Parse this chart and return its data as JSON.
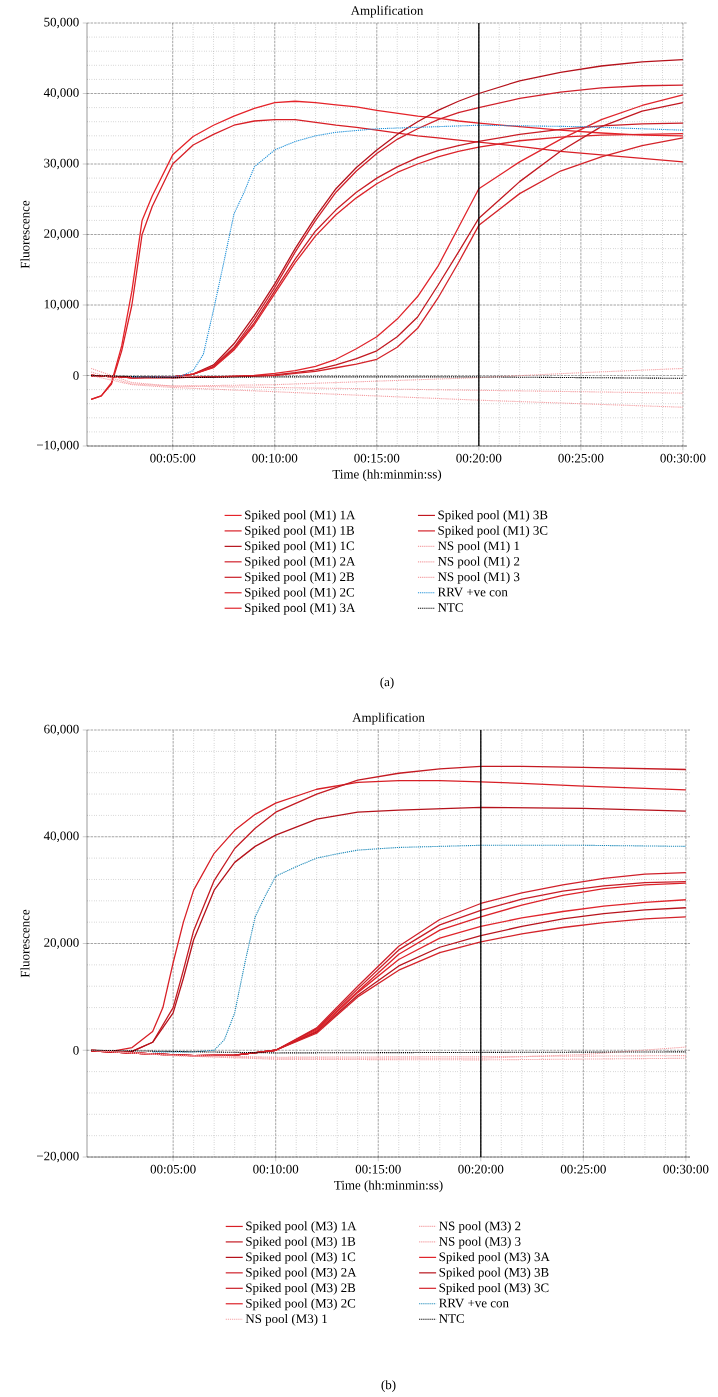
{
  "chart_data": [
    {
      "type": "line",
      "title": "Amplification",
      "xlabel": "Time (hh:minmin:ss)",
      "ylabel": "Fluorescence",
      "annotations": [
        "(a)"
      ],
      "xlim": [
        0.8,
        30.2
      ],
      "ylim": [
        -10000,
        50000
      ],
      "xticks": [
        {
          "value": 5,
          "label": "00:05:00"
        },
        {
          "value": 10,
          "label": "00:10:00"
        },
        {
          "value": 15,
          "label": "00:15:00"
        },
        {
          "value": 20,
          "label": "00:20:00"
        },
        {
          "value": 25,
          "label": "00:25:00"
        },
        {
          "value": 30,
          "label": "00:30:00"
        }
      ],
      "yticks": [
        {
          "value": -10000,
          "label": "−10,000"
        },
        0,
        {
          "value": 10000,
          "label": "10,000"
        },
        {
          "value": 20000,
          "label": "20,000"
        },
        {
          "value": 30000,
          "label": "30,000"
        },
        {
          "value": 40000,
          "label": "40,000"
        },
        {
          "value": 50000,
          "label": "50,000"
        }
      ],
      "grid": true,
      "legend": "bottom",
      "line_style": "solid",
      "ref_lines": [
        {
          "axis": "x",
          "value": 20,
          "color": "#000000"
        }
      ],
      "series": [
        {
          "name": "Spiked pool (M1) 1A",
          "color": "#e52329",
          "x": [
            1,
            1.5,
            2,
            2.5,
            3,
            3.5,
            4,
            5,
            6,
            7,
            8,
            9,
            10,
            11,
            12,
            13,
            14,
            15,
            16,
            17,
            18,
            19,
            20,
            22,
            24,
            26,
            28,
            30
          ],
          "values": [
            -3400,
            -2900,
            -1000,
            4200,
            12000,
            22000,
            25500,
            31300,
            33900,
            35500,
            36800,
            37900,
            38700,
            38900,
            38700,
            38400,
            38100,
            37600,
            37200,
            36800,
            36500,
            36100,
            35800,
            35300,
            34800,
            34400,
            34100,
            34000
          ]
        },
        {
          "name": "Spiked pool (M1) 1B",
          "color": "#d81f26",
          "x": [
            1,
            1.5,
            2,
            2.5,
            3,
            3.5,
            4,
            5,
            6,
            7,
            8,
            9,
            10,
            11,
            12,
            13,
            14,
            15,
            16,
            17,
            18,
            19,
            20,
            22,
            24,
            26,
            28,
            30
          ],
          "values": [
            -3400,
            -2900,
            -1200,
            3500,
            10000,
            20000,
            24000,
            30000,
            32700,
            34200,
            35500,
            36100,
            36300,
            36300,
            35900,
            35500,
            35200,
            34800,
            34400,
            34000,
            33700,
            33400,
            33100,
            32500,
            31800,
            31300,
            30800,
            30300
          ]
        },
        {
          "name": "Spiked pool (M1) 1C",
          "color": "#b5121b",
          "x": [
            1,
            3,
            5,
            6,
            7,
            8,
            9,
            10,
            11,
            12,
            13,
            14,
            15,
            16,
            17,
            18,
            19,
            20,
            22,
            24,
            26,
            28,
            30
          ],
          "values": [
            0,
            -300,
            -200,
            200,
            1500,
            4500,
            8500,
            13000,
            18000,
            22500,
            26500,
            29500,
            32000,
            34200,
            36000,
            37600,
            38900,
            40000,
            41800,
            43000,
            43900,
            44500,
            44800
          ]
        },
        {
          "name": "Spiked pool (M1) 2A",
          "color": "#d0202a",
          "x": [
            1,
            3,
            5,
            6,
            7,
            8,
            9,
            10,
            11,
            12,
            13,
            14,
            15,
            16,
            17,
            18,
            19,
            20,
            22,
            24,
            26,
            28,
            30
          ],
          "values": [
            0,
            -300,
            -200,
            200,
            1300,
            4000,
            8000,
            12500,
            17500,
            22000,
            26000,
            29000,
            31500,
            33500,
            35000,
            36300,
            37300,
            38000,
            39300,
            40200,
            40800,
            41100,
            41200
          ]
        },
        {
          "name": "Spiked pool (M1) 2B",
          "color": "#c91d26",
          "x": [
            1,
            3,
            5,
            6,
            7,
            8,
            9,
            10,
            11,
            12,
            13,
            14,
            15,
            16,
            17,
            18,
            19,
            20,
            22,
            24,
            26,
            28,
            30
          ],
          "values": [
            0,
            -300,
            -200,
            200,
            1200,
            3800,
            7500,
            12000,
            16500,
            20500,
            23500,
            26000,
            28000,
            29600,
            30900,
            31900,
            32600,
            33200,
            34200,
            34900,
            35400,
            35700,
            35800
          ]
        },
        {
          "name": "Spiked pool (M1) 2C",
          "color": "#dc2229",
          "x": [
            1,
            3,
            5,
            6,
            7,
            8,
            9,
            10,
            11,
            12,
            13,
            14,
            15,
            16,
            17,
            18,
            19,
            20,
            22,
            24,
            26,
            28,
            30
          ],
          "values": [
            0,
            -300,
            -200,
            200,
            1100,
            3600,
            7200,
            11600,
            16000,
            19800,
            22800,
            25200,
            27200,
            28800,
            30000,
            31000,
            31800,
            32400,
            33300,
            33800,
            34100,
            34200,
            34300
          ]
        },
        {
          "name": "Spiked pool (M1) 3A",
          "color": "#e0252c",
          "x": [
            1,
            3,
            5,
            7,
            9,
            10,
            11,
            12,
            13,
            14,
            15,
            16,
            17,
            18,
            19,
            20,
            22,
            24,
            26,
            28,
            30
          ],
          "values": [
            0,
            -300,
            -300,
            -200,
            0,
            300,
            700,
            1300,
            2300,
            3800,
            5500,
            8000,
            11200,
            15500,
            21000,
            26500,
            30300,
            33500,
            36300,
            38300,
            39800
          ]
        },
        {
          "name": "Spiked pool (M1) 3B",
          "color": "#c21820",
          "x": [
            1,
            3,
            5,
            7,
            9,
            10,
            11,
            12,
            13,
            14,
            15,
            16,
            17,
            18,
            19,
            20,
            22,
            24,
            26,
            28,
            30
          ],
          "values": [
            0,
            -300,
            -300,
            -200,
            -100,
            100,
            400,
            800,
            1500,
            2400,
            3500,
            5500,
            8300,
            12800,
            17500,
            22300,
            27500,
            31800,
            35300,
            37500,
            38700
          ]
        },
        {
          "name": "Spiked pool (M1) 3C",
          "color": "#d4232a",
          "x": [
            1,
            3,
            5,
            7,
            9,
            10,
            11,
            12,
            13,
            14,
            15,
            16,
            17,
            18,
            19,
            20,
            22,
            24,
            26,
            28,
            30
          ],
          "values": [
            0,
            -300,
            -300,
            -200,
            -100,
            0,
            300,
            600,
            1100,
            1600,
            2300,
            4000,
            6700,
            11000,
            16000,
            21300,
            25800,
            29000,
            31000,
            32600,
            33700
          ]
        },
        {
          "name": "NS pool (M1) 1",
          "color": "#f4a0a4",
          "line_style": "dotted",
          "x": [
            1,
            3,
            5,
            10,
            15,
            20,
            25,
            30
          ],
          "values": [
            1000,
            -1000,
            -1500,
            -1300,
            -800,
            -300,
            400,
            1000
          ]
        },
        {
          "name": "NS pool (M1) 2",
          "color": "#f4a0a4",
          "line_style": "dotted",
          "x": [
            1,
            3,
            5,
            10,
            15,
            20,
            25,
            30
          ],
          "values": [
            500,
            -1200,
            -1500,
            -1700,
            -1900,
            -2100,
            -2300,
            -2500
          ]
        },
        {
          "name": "NS pool (M1) 3",
          "color": "#f4a0a4",
          "line_style": "dotted",
          "x": [
            1,
            3,
            5,
            10,
            15,
            20,
            25,
            30
          ],
          "values": [
            0,
            -1300,
            -1700,
            -2300,
            -2900,
            -3500,
            -4000,
            -4500
          ]
        },
        {
          "name": "RRV +ve con",
          "color": "#1e90d8",
          "line_style": "dotted",
          "x": [
            3,
            5,
            5.5,
            6,
            6.5,
            7,
            7.5,
            8,
            8.5,
            9,
            10,
            11,
            12,
            13,
            15,
            20,
            25,
            30
          ],
          "values": [
            -200,
            -200,
            0,
            700,
            3000,
            9300,
            16000,
            22900,
            26000,
            29600,
            32000,
            33200,
            34000,
            34500,
            35000,
            35500,
            35300,
            34800
          ]
        },
        {
          "name": "NTC",
          "color": "#000000",
          "line_style": "dotted",
          "x": [
            1,
            5,
            10,
            15,
            20,
            25,
            30
          ],
          "values": [
            0,
            -300,
            -200,
            -200,
            -200,
            -300,
            -400
          ]
        }
      ]
    },
    {
      "type": "line",
      "title": "Amplification",
      "xlabel": "Time (hh:minmin:ss)",
      "ylabel": "Fluorescence",
      "annotations": [
        "(b)"
      ],
      "xlim": [
        0.8,
        30.2
      ],
      "ylim": [
        -20000,
        60000
      ],
      "xticks": [
        {
          "value": 5,
          "label": "00:05:00"
        },
        {
          "value": 10,
          "label": "00:10:00"
        },
        {
          "value": 15,
          "label": "00:15:00"
        },
        {
          "value": 20,
          "label": "00:20:00"
        },
        {
          "value": 25,
          "label": "00:25:00"
        },
        {
          "value": 30,
          "label": "00:30:00"
        }
      ],
      "yticks": [
        {
          "value": -20000,
          "label": "−20,000"
        },
        0,
        {
          "value": 20000,
          "label": "20,000"
        },
        {
          "value": 40000,
          "label": "40,000"
        },
        {
          "value": 60000,
          "label": "60,000"
        }
      ],
      "grid": true,
      "legend": "bottom",
      "line_style": "solid",
      "ref_lines": [
        {
          "axis": "x",
          "value": 20,
          "color": "#000000"
        }
      ],
      "series": [
        {
          "name": "Spiked pool (M3) 1A",
          "color": "#d81f26",
          "x": [
            1,
            2,
            3,
            4,
            4.5,
            5,
            5.5,
            6,
            7,
            8,
            9,
            10,
            12,
            14,
            16,
            18,
            20,
            22,
            25,
            30
          ],
          "values": [
            0,
            -200,
            500,
            3500,
            8000,
            16400,
            24000,
            30000,
            36900,
            41200,
            44200,
            46300,
            48900,
            50200,
            50500,
            50500,
            50300,
            50000,
            49500,
            48800
          ]
        },
        {
          "name": "Spiked pool (M3) 1B",
          "color": "#c41a22",
          "x": [
            1,
            2,
            3,
            4,
            5,
            5.5,
            6,
            7,
            8,
            9,
            10,
            12,
            14,
            16,
            18,
            20,
            22,
            25,
            30
          ],
          "values": [
            0,
            -300,
            -200,
            1500,
            8000,
            15000,
            22400,
            31800,
            37800,
            41600,
            44600,
            48000,
            50600,
            51900,
            52700,
            53200,
            53200,
            53000,
            52600
          ]
        },
        {
          "name": "Spiked pool (M3) 1C",
          "color": "#b5121b",
          "x": [
            1,
            2,
            3,
            4,
            5,
            5.5,
            6,
            7,
            8,
            9,
            10,
            12,
            14,
            16,
            20,
            25,
            30
          ],
          "values": [
            0,
            -300,
            -200,
            1500,
            7000,
            13500,
            20700,
            30000,
            35200,
            38200,
            40300,
            43300,
            44600,
            45000,
            45500,
            45300,
            44800
          ]
        },
        {
          "name": "Spiked pool (M3) 2A",
          "color": "#d0202a",
          "x": [
            1,
            4,
            6,
            8,
            10,
            12,
            14,
            16,
            18,
            20,
            22,
            24,
            26,
            28,
            30
          ],
          "values": [
            -100,
            -700,
            -1000,
            -900,
            0,
            4200,
            12000,
            19500,
            24500,
            27500,
            29500,
            31000,
            32200,
            33000,
            33300
          ]
        },
        {
          "name": "Spiked pool (M3) 2B",
          "color": "#c91d26",
          "x": [
            1,
            4,
            6,
            8,
            10,
            12,
            14,
            16,
            18,
            20,
            22,
            24,
            26,
            28,
            30
          ],
          "values": [
            -100,
            -700,
            -1000,
            -900,
            0,
            4000,
            11500,
            18800,
            23500,
            26200,
            28300,
            29800,
            30800,
            31400,
            31600
          ]
        },
        {
          "name": "Spiked pool (M3) 2C",
          "color": "#dc2229",
          "x": [
            1,
            4,
            6,
            8,
            10,
            12,
            14,
            16,
            18,
            20,
            22,
            24,
            26,
            28,
            30
          ],
          "values": [
            -100,
            -700,
            -1000,
            -900,
            0,
            3800,
            11000,
            18000,
            22500,
            25000,
            27200,
            29000,
            30300,
            31000,
            31300
          ]
        },
        {
          "name": "NS pool (M3) 1",
          "color": "#f4a0a4",
          "line_style": "dotted",
          "x": [
            1,
            5,
            10,
            20,
            25,
            30
          ],
          "values": [
            0,
            -1000,
            -1500,
            -1500,
            -800,
            600
          ]
        },
        {
          "name": "NS pool (M3) 2",
          "color": "#f4a0a4",
          "line_style": "dotted",
          "x": [
            1,
            5,
            10,
            20,
            30
          ],
          "values": [
            0,
            -1000,
            -1700,
            -1800,
            -1500
          ]
        },
        {
          "name": "NS pool (M3) 3",
          "color": "#f4a0a4",
          "line_style": "dotted",
          "x": [
            1,
            5,
            10,
            20,
            30
          ],
          "values": [
            0,
            -900,
            -1300,
            -1200,
            -1000
          ]
        },
        {
          "name": "Spiked pool (M3) 3A",
          "color": "#e0252c",
          "x": [
            1,
            4,
            6,
            8,
            10,
            12,
            14,
            16,
            18,
            20,
            22,
            24,
            26,
            28,
            30
          ],
          "values": [
            -100,
            -700,
            -1000,
            -900,
            0,
            3600,
            10800,
            17000,
            21000,
            23200,
            24800,
            26000,
            27000,
            27700,
            28200
          ]
        },
        {
          "name": "Spiked pool (M3) 3B",
          "color": "#b8141d",
          "x": [
            1,
            4,
            6,
            8,
            10,
            12,
            14,
            16,
            18,
            20,
            22,
            24,
            26,
            28,
            30
          ],
          "values": [
            -100,
            -700,
            -1000,
            -900,
            0,
            3400,
            10300,
            15800,
            19300,
            21500,
            23200,
            24600,
            25600,
            26300,
            26700
          ]
        },
        {
          "name": "Spiked pool (M3) 3C",
          "color": "#d4232a",
          "x": [
            1,
            4,
            6,
            8,
            10,
            12,
            14,
            16,
            18,
            20,
            22,
            24,
            26,
            28,
            30
          ],
          "values": [
            -100,
            -700,
            -1000,
            -900,
            0,
            3200,
            10000,
            15000,
            18300,
            20300,
            21800,
            23000,
            23900,
            24600,
            25000
          ]
        },
        {
          "name": "RRV +ve con",
          "color": "#1a88b8",
          "line_style": "dotted",
          "x": [
            4,
            6,
            7,
            7.5,
            8,
            8.5,
            9,
            9.5,
            10,
            11,
            12,
            13,
            14,
            16,
            18,
            20,
            25,
            30
          ],
          "values": [
            -300,
            -300,
            0,
            2000,
            7000,
            16400,
            25000,
            29000,
            32600,
            34400,
            36000,
            36800,
            37500,
            38000,
            38200,
            38400,
            38400,
            38200
          ]
        },
        {
          "name": "NTC",
          "color": "#000000",
          "line_style": "dotted",
          "x": [
            1,
            10,
            20,
            30
          ],
          "values": [
            0,
            -500,
            -400,
            -300
          ]
        }
      ]
    }
  ]
}
